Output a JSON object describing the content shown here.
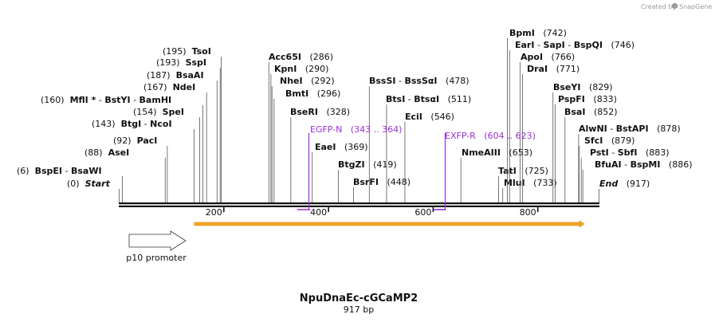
{
  "credit": "Created by",
  "brand": "SnapGene",
  "construct": {
    "name": "NpuDnaEc-cGCaMP2",
    "size_label": "917 bp",
    "length": 917
  },
  "ruler": {
    "ticks": [
      {
        "pos": 200,
        "label": "200"
      },
      {
        "pos": 400,
        "label": "400"
      },
      {
        "pos": 600,
        "label": "600"
      },
      {
        "pos": 800,
        "label": "800"
      }
    ]
  },
  "sites": [
    {
      "pos": "(0)",
      "names": [
        "Start"
      ],
      "italic": true,
      "bp": 0
    },
    {
      "pos": "(6)",
      "names": [
        "BspEI",
        "BsaWI"
      ],
      "bp": 6
    },
    {
      "pos": "(88)",
      "names": [
        "AseI"
      ],
      "bp": 88
    },
    {
      "pos": "(92)",
      "names": [
        "PacI"
      ],
      "bp": 92
    },
    {
      "pos": "(143)",
      "names": [
        "BtgI",
        "NcoI"
      ],
      "bp": 143
    },
    {
      "pos": "(154)",
      "names": [
        "SpeI"
      ],
      "bp": 154
    },
    {
      "pos": "(160)",
      "names": [
        "MflI *",
        "BstYI",
        "BamHI"
      ],
      "bp": 160
    },
    {
      "pos": "(167)",
      "names": [
        "NdeI"
      ],
      "bp": 167
    },
    {
      "pos": "(187)",
      "names": [
        "BsaAI"
      ],
      "bp": 187
    },
    {
      "pos": "(193)",
      "names": [
        "SspI"
      ],
      "bp": 193
    },
    {
      "pos": "(195)",
      "names": [
        "TsoI"
      ],
      "bp": 195
    },
    {
      "pos": "(286)",
      "names": [
        "Acc65I"
      ],
      "bp": 286
    },
    {
      "pos": "(290)",
      "names": [
        "KpnI"
      ],
      "bp": 290
    },
    {
      "pos": "(292)",
      "names": [
        "NheI"
      ],
      "bp": 292
    },
    {
      "pos": "(296)",
      "names": [
        "BmtI"
      ],
      "bp": 296
    },
    {
      "pos": "(328)",
      "names": [
        "BseRI"
      ],
      "bp": 328
    },
    {
      "pos": "(369)",
      "names": [
        "EaeI"
      ],
      "bp": 369
    },
    {
      "pos": "(419)",
      "names": [
        "BtgZI"
      ],
      "bp": 419
    },
    {
      "pos": "(448)",
      "names": [
        "BsrFI"
      ],
      "bp": 448
    },
    {
      "pos": "(478)",
      "names": [
        "BssSI",
        "BssSαI"
      ],
      "bp": 478
    },
    {
      "pos": "(511)",
      "names": [
        "BtsI",
        "BtsαI"
      ],
      "bp": 511
    },
    {
      "pos": "(546)",
      "names": [
        "EciI"
      ],
      "bp": 546
    },
    {
      "pos": "(653)",
      "names": [
        "NmeAIII"
      ],
      "bp": 653
    },
    {
      "pos": "(725)",
      "names": [
        "TatI"
      ],
      "bp": 725
    },
    {
      "pos": "(733)",
      "names": [
        "MluI"
      ],
      "bp": 733
    },
    {
      "pos": "(742)",
      "names": [
        "BpmI"
      ],
      "bp": 742
    },
    {
      "pos": "(746)",
      "names": [
        "EarI",
        "SapI",
        "BspQI"
      ],
      "bp": 746
    },
    {
      "pos": "(766)",
      "names": [
        "ApoI"
      ],
      "bp": 766
    },
    {
      "pos": "(771)",
      "names": [
        "DraI"
      ],
      "bp": 771
    },
    {
      "pos": "(829)",
      "names": [
        "BseYI"
      ],
      "bp": 829
    },
    {
      "pos": "(833)",
      "names": [
        "PspFI"
      ],
      "bp": 833
    },
    {
      "pos": "(852)",
      "names": [
        "BsaI"
      ],
      "bp": 852
    },
    {
      "pos": "(878)",
      "names": [
        "AlwNI",
        "BstAPI"
      ],
      "bp": 878
    },
    {
      "pos": "(879)",
      "names": [
        "SfcI"
      ],
      "bp": 879
    },
    {
      "pos": "(883)",
      "names": [
        "PstI",
        "SbfI"
      ],
      "bp": 883
    },
    {
      "pos": "(886)",
      "names": [
        "BfuAI",
        "BspMI"
      ],
      "bp": 886
    },
    {
      "pos": "(917)",
      "names": [
        "End"
      ],
      "italic": true,
      "bp": 917
    }
  ],
  "primers": [
    {
      "name": "EGFP-N",
      "range": "(343 .. 364)",
      "start": 343,
      "end": 364,
      "color": "#9b30d9"
    },
    {
      "name": "EXFP-R",
      "range": "(604 .. 623)",
      "start": 604,
      "end": 623,
      "color": "#9b30d9"
    }
  ],
  "features": [
    {
      "name": "p10 promoter",
      "start": 21,
      "end": 130,
      "color": "#ffffff"
    },
    {
      "name": "",
      "start": 140,
      "end": 897,
      "color": "#f5a623"
    }
  ]
}
